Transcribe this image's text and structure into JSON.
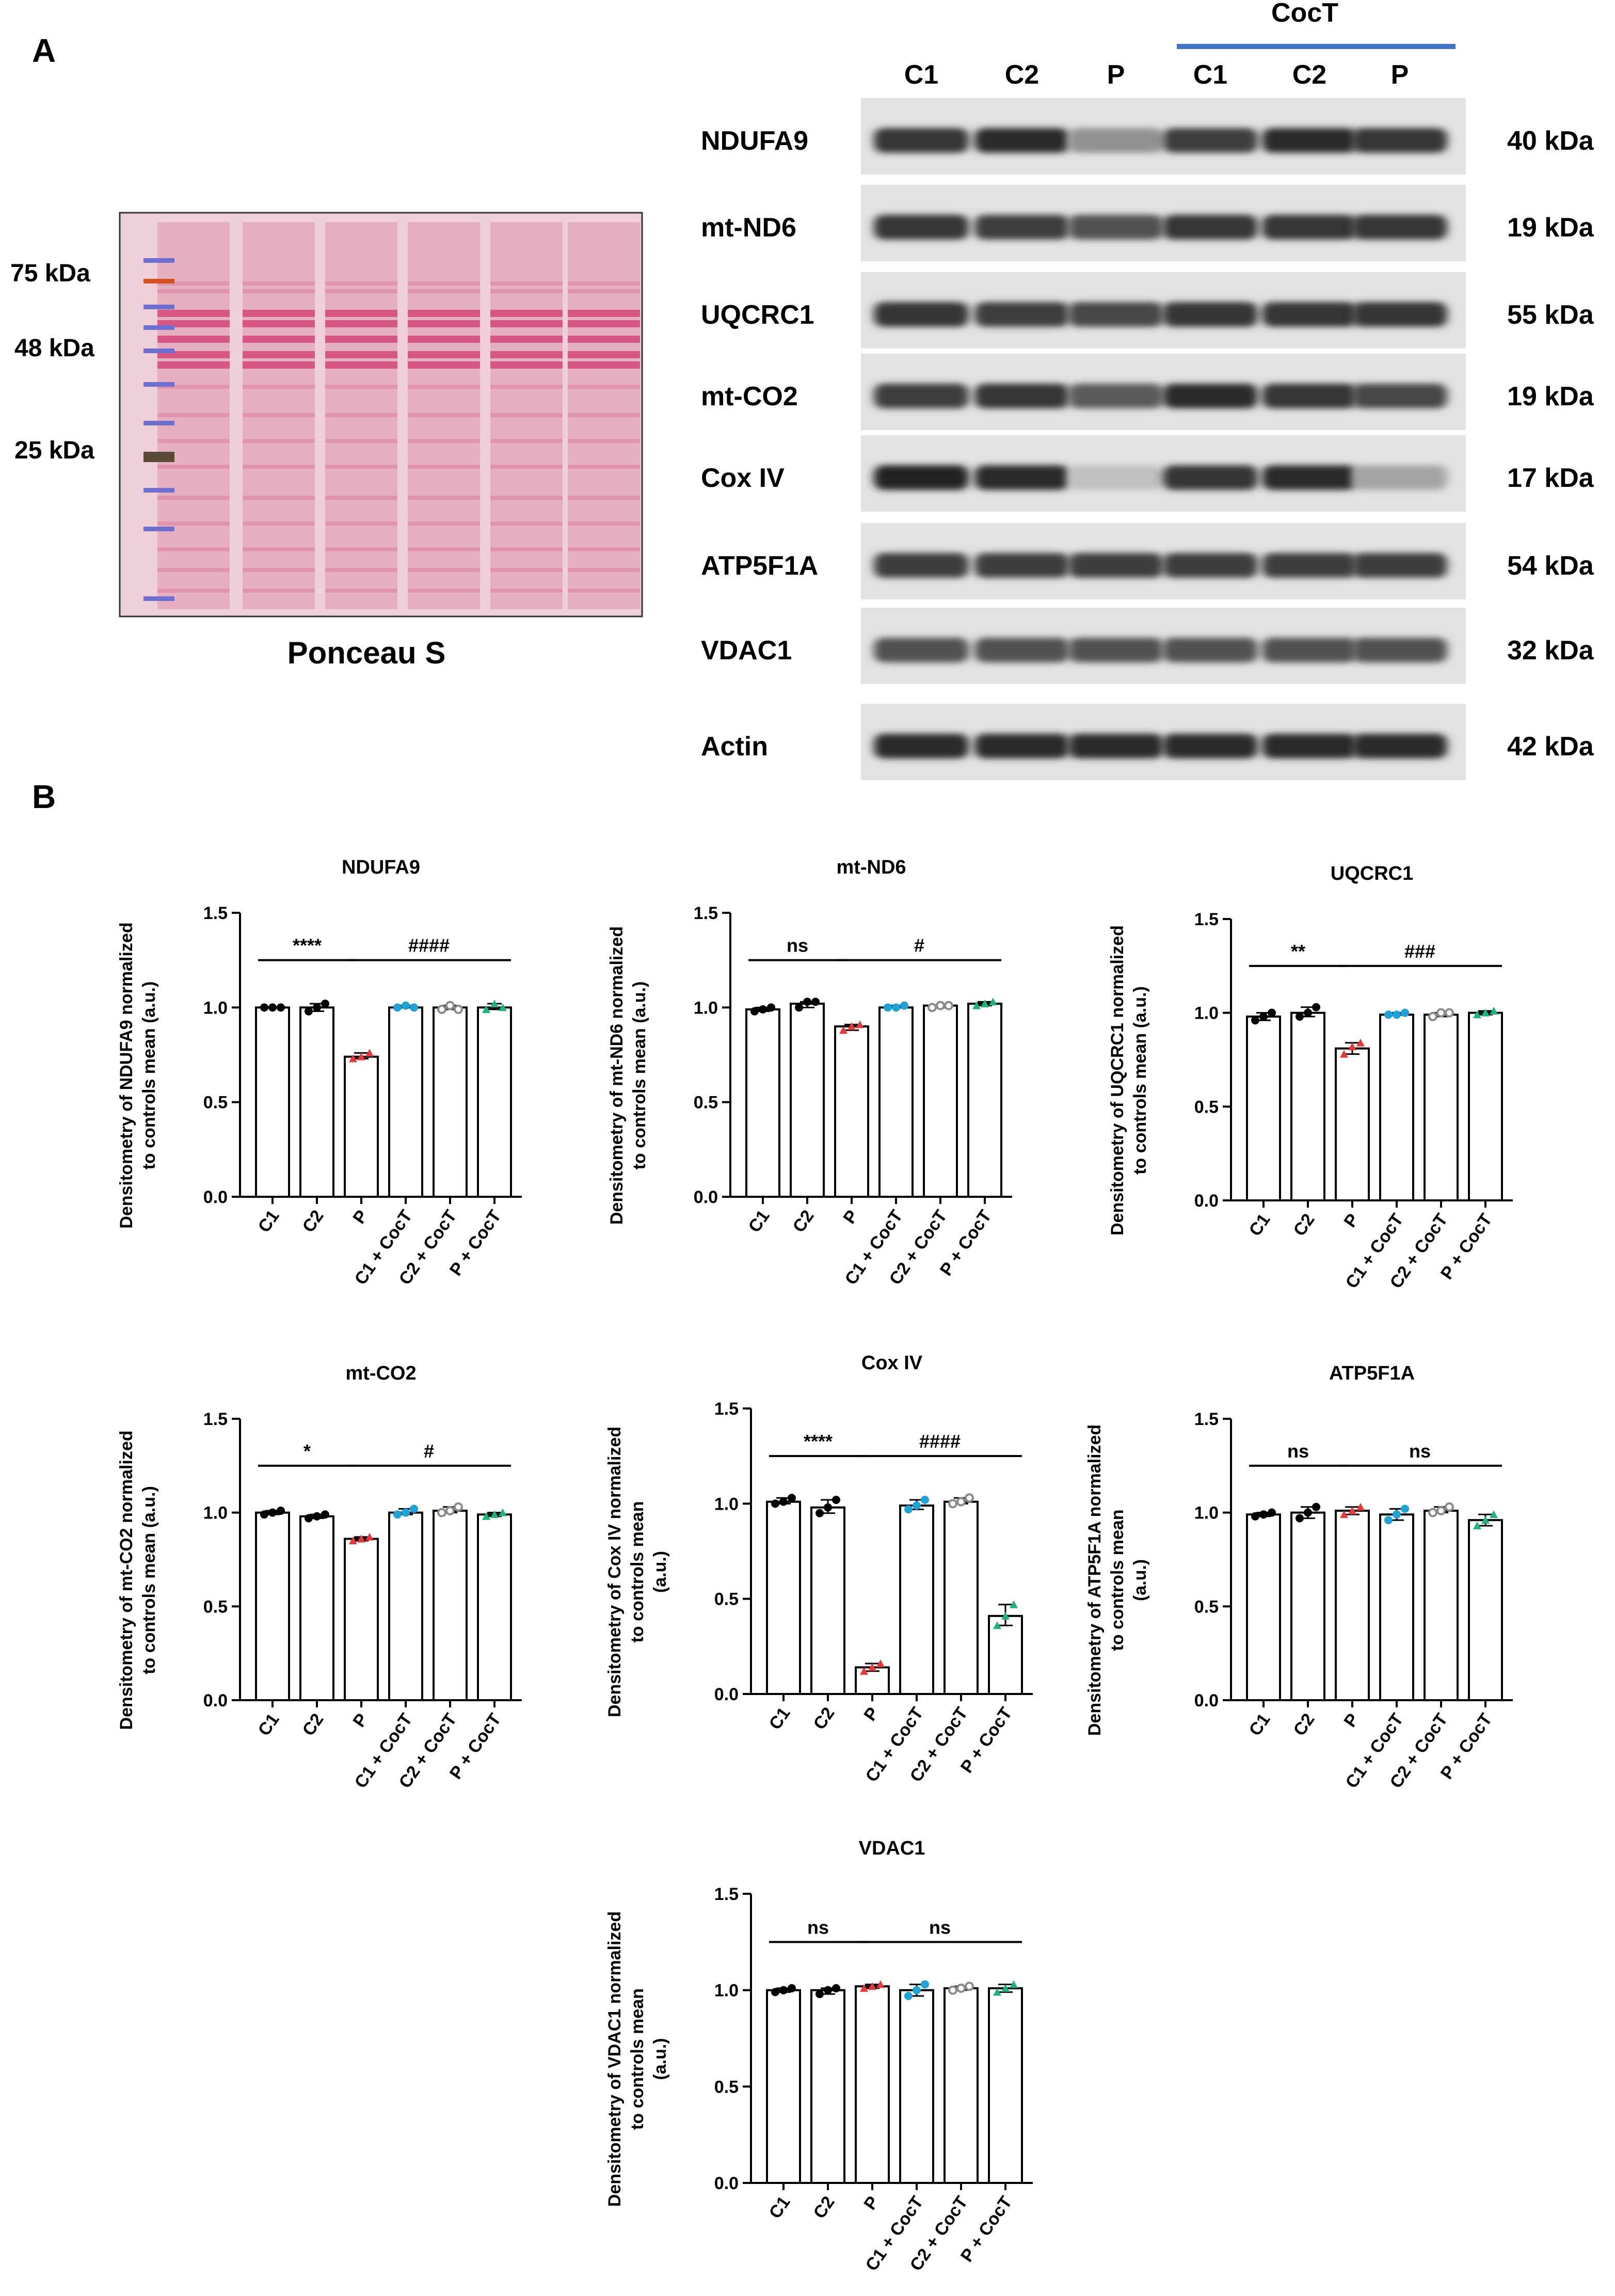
{
  "panel_a": {
    "label": "A",
    "ponceau": {
      "caption": "Ponceau S",
      "markers": [
        "75 kDa",
        "48 kDa",
        "25 kDa"
      ]
    },
    "blot": {
      "lanes": [
        "C1",
        "C2",
        "P",
        "C1",
        "C2",
        "P"
      ],
      "treatment_label": "CocT",
      "treatment_bar_color": "#4472c4",
      "rows": [
        {
          "protein": "NDUFA9",
          "size": "40 kDa",
          "intensity": [
            0.85,
            0.9,
            0.35,
            0.8,
            0.9,
            0.85
          ]
        },
        {
          "protein": "mt-ND6",
          "size": "19 kDa",
          "intensity": [
            0.85,
            0.8,
            0.7,
            0.85,
            0.85,
            0.85
          ]
        },
        {
          "protein": "UQCRC1",
          "size": "55 kDa",
          "intensity": [
            0.85,
            0.8,
            0.75,
            0.85,
            0.85,
            0.85
          ]
        },
        {
          "protein": "mt-CO2",
          "size": "19 kDa",
          "intensity": [
            0.8,
            0.85,
            0.65,
            0.9,
            0.85,
            0.75
          ]
        },
        {
          "protein": "Cox IV",
          "size": "17 kDa",
          "intensity": [
            0.95,
            0.9,
            0.1,
            0.85,
            0.9,
            0.25
          ]
        },
        {
          "protein": "ATP5F1A",
          "size": "54 kDa",
          "intensity": [
            0.8,
            0.8,
            0.8,
            0.8,
            0.8,
            0.8
          ]
        },
        {
          "protein": "VDAC1",
          "size": "32 kDa",
          "intensity": [
            0.7,
            0.7,
            0.7,
            0.7,
            0.7,
            0.7
          ]
        },
        {
          "protein": "Actin",
          "size": "42 kDa",
          "intensity": [
            0.9,
            0.9,
            0.9,
            0.9,
            0.9,
            0.9
          ]
        }
      ]
    }
  },
  "panel_b": {
    "label": "B"
  },
  "group_colors": [
    "#000000",
    "#000000",
    "#e8393a",
    "#1fa3d6",
    "#8a8a8a",
    "#1db37a"
  ],
  "chart_data": [
    {
      "type": "bar",
      "title": "NDUFA9",
      "ylabel": [
        "Densitometry of NDUFA9 normalized",
        "to controls mean (a.u.)"
      ],
      "categories": [
        "C1",
        "C2",
        "P",
        "C1 + CocT",
        "C2 + CocT",
        "P + CocT"
      ],
      "values": [
        1.0,
        1.0,
        0.74,
        1.0,
        1.0,
        1.0
      ],
      "points": [
        [
          1.0,
          1.0,
          1.0
        ],
        [
          0.98,
          1.0,
          1.02
        ],
        [
          0.73,
          0.74,
          0.76
        ],
        [
          1.0,
          1.01,
          1.0
        ],
        [
          0.99,
          1.01,
          0.99
        ],
        [
          0.99,
          1.02,
          1.0
        ]
      ],
      "ylim": [
        0,
        1.5
      ],
      "yticks": [
        "0.0",
        "0.5",
        "1.0",
        "1.5"
      ],
      "sig": [
        {
          "text": "****",
          "from": 0,
          "to": 2
        },
        {
          "text": "####",
          "from": 2,
          "to": 5
        }
      ]
    },
    {
      "type": "bar",
      "title": "mt-ND6",
      "ylabel": [
        "Densitometry of mt-ND6 normalized",
        "to controls mean (a.u.)"
      ],
      "categories": [
        "C1",
        "C2",
        "P",
        "C1 + CocT",
        "C2 + CocT",
        "P + CocT"
      ],
      "values": [
        0.99,
        1.02,
        0.9,
        1.0,
        1.01,
        1.02
      ],
      "points": [
        [
          0.98,
          0.99,
          1.0
        ],
        [
          1.0,
          1.03,
          1.03
        ],
        [
          0.88,
          0.9,
          0.91
        ],
        [
          1.0,
          1.0,
          1.01
        ],
        [
          1.0,
          1.01,
          1.01
        ],
        [
          1.01,
          1.02,
          1.03
        ]
      ],
      "ylim": [
        0,
        1.5
      ],
      "yticks": [
        "0.0",
        "0.5",
        "1.0",
        "1.5"
      ],
      "sig": [
        {
          "text": "ns",
          "from": 0,
          "to": 2
        },
        {
          "text": "#",
          "from": 2,
          "to": 5
        }
      ]
    },
    {
      "type": "bar",
      "title": "UQCRC1",
      "ylabel": [
        "Densitometry of UQCRC1 normalized",
        "to controls mean (a.u.)"
      ],
      "categories": [
        "C1",
        "C2",
        "P",
        "C1 + CocT",
        "C2 + CocT",
        "P + CocT"
      ],
      "values": [
        0.98,
        1.0,
        0.81,
        0.99,
        0.99,
        1.0
      ],
      "points": [
        [
          0.96,
          0.98,
          1.0
        ],
        [
          0.98,
          1.0,
          1.03
        ],
        [
          0.78,
          0.82,
          0.84
        ],
        [
          0.99,
          0.99,
          1.0
        ],
        [
          0.98,
          1.0,
          1.0
        ],
        [
          0.99,
          1.0,
          1.01
        ]
      ],
      "ylim": [
        0,
        1.5
      ],
      "yticks": [
        "0.0",
        "0.5",
        "1.0",
        "1.5"
      ],
      "sig": [
        {
          "text": "**",
          "from": 0,
          "to": 2
        },
        {
          "text": "###",
          "from": 2,
          "to": 5
        }
      ]
    },
    {
      "type": "bar",
      "title": "mt-CO2",
      "ylabel": [
        "Densitometry of mt-CO2 normalized",
        "to controls mean (a.u.)"
      ],
      "categories": [
        "C1",
        "C2",
        "P",
        "C1 + CocT",
        "C2 + CocT",
        "P + CocT"
      ],
      "values": [
        1.0,
        0.98,
        0.86,
        1.0,
        1.01,
        0.99
      ],
      "points": [
        [
          0.99,
          1.0,
          1.01
        ],
        [
          0.97,
          0.98,
          0.99
        ],
        [
          0.85,
          0.86,
          0.87
        ],
        [
          0.99,
          1.0,
          1.02
        ],
        [
          1.0,
          1.01,
          1.03
        ],
        [
          0.98,
          0.99,
          1.0
        ]
      ],
      "ylim": [
        0,
        1.5
      ],
      "yticks": [
        "0.0",
        "0.5",
        "1.0",
        "1.5"
      ],
      "sig": [
        {
          "text": "*",
          "from": 0,
          "to": 2
        },
        {
          "text": "#",
          "from": 2,
          "to": 5
        }
      ]
    },
    {
      "type": "bar",
      "title": "Cox IV",
      "ylabel": [
        "Densitometry of Cox IV  normalized",
        "to controls mean",
        "(a.u.)"
      ],
      "categories": [
        "C1",
        "C2",
        "P",
        "C1 + CocT",
        "C2 + CocT",
        "P + CocT"
      ],
      "values": [
        1.01,
        0.98,
        0.14,
        0.99,
        1.01,
        0.41
      ],
      "points": [
        [
          1.0,
          1.01,
          1.03
        ],
        [
          0.95,
          0.98,
          1.02
        ],
        [
          0.12,
          0.14,
          0.16
        ],
        [
          0.97,
          0.99,
          1.02
        ],
        [
          1.0,
          1.01,
          1.03
        ],
        [
          0.36,
          0.41,
          0.47
        ]
      ],
      "ylim": [
        0,
        1.5
      ],
      "yticks": [
        "0.0",
        "0.5",
        "1.0",
        "1.5"
      ],
      "sig": [
        {
          "text": "****",
          "from": 0,
          "to": 2
        },
        {
          "text": "####",
          "from": 2,
          "to": 5
        }
      ]
    },
    {
      "type": "bar",
      "title": "ATP5F1A",
      "ylabel": [
        "Densitometry of ATP5F1A  normalized",
        "to controls mean",
        "(a.u.)"
      ],
      "categories": [
        "C1",
        "C2",
        "P",
        "C1 + CocT",
        "C2 + CocT",
        "P + CocT"
      ],
      "values": [
        0.99,
        1.0,
        1.01,
        0.99,
        1.01,
        0.96
      ],
      "points": [
        [
          0.98,
          0.99,
          1.0
        ],
        [
          0.97,
          1.0,
          1.03
        ],
        [
          0.99,
          1.01,
          1.03
        ],
        [
          0.96,
          0.99,
          1.02
        ],
        [
          1.0,
          1.01,
          1.03
        ],
        [
          0.93,
          0.96,
          0.99
        ]
      ],
      "ylim": [
        0,
        1.5
      ],
      "yticks": [
        "0.0",
        "0.5",
        "1.0",
        "1.5"
      ],
      "sig": [
        {
          "text": "ns",
          "from": 0,
          "to": 2
        },
        {
          "text": "ns",
          "from": 2,
          "to": 5
        }
      ]
    },
    {
      "type": "bar",
      "title": "VDAC1",
      "ylabel": [
        "Densitometry of VDAC1 normalized",
        "to controls mean",
        "(a.u.)"
      ],
      "categories": [
        "C1",
        "C2",
        "P",
        "C1 + CocT",
        "C2 + CocT",
        "P + CocT"
      ],
      "values": [
        1.0,
        1.0,
        1.02,
        1.0,
        1.01,
        1.01
      ],
      "points": [
        [
          0.99,
          1.0,
          1.01
        ],
        [
          0.98,
          1.0,
          1.01
        ],
        [
          1.01,
          1.02,
          1.03
        ],
        [
          0.97,
          1.0,
          1.03
        ],
        [
          1.0,
          1.01,
          1.02
        ],
        [
          0.99,
          1.01,
          1.03
        ]
      ],
      "ylim": [
        0,
        1.5
      ],
      "yticks": [
        "0.0",
        "0.5",
        "1.0",
        "1.5"
      ],
      "sig": [
        {
          "text": "ns",
          "from": 0,
          "to": 2
        },
        {
          "text": "ns",
          "from": 2,
          "to": 5
        }
      ]
    }
  ]
}
